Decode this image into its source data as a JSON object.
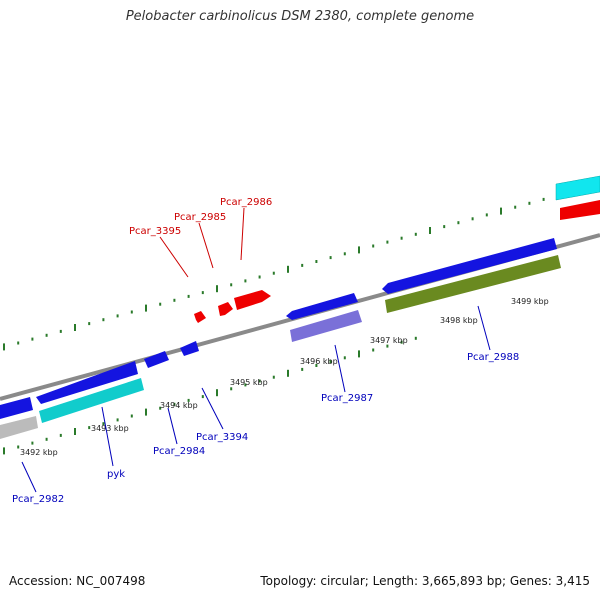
{
  "title": "Pelobacter carbinolicus DSM 2380, complete genome",
  "accession": "Accession: NC_007498",
  "summary": "Topology: circular; Length: 3,665,893 bp; Genes: 3,415",
  "colors": {
    "backbone": "#888888",
    "tick": "#2a7a2a",
    "forward_label": "#cc0000",
    "reverse_label": "#0000bb"
  },
  "position_labels": [
    "3492 kbp",
    "3493 kbp",
    "3494 kbp",
    "3495 kbp",
    "3496 kbp",
    "3497 kbp",
    "3498 kbp",
    "3499 kbp"
  ],
  "gene_labels": {
    "pcar3395": "Pcar_3395",
    "pcar2985": "Pcar_2985",
    "pcar2986": "Pcar_2986",
    "pcar2982": "Pcar_2982",
    "pyk": "pyk",
    "pcar2984": "Pcar_2984",
    "pcar3394": "Pcar_3394",
    "pcar2987": "Pcar_2987",
    "pcar2988": "Pcar_2988"
  }
}
